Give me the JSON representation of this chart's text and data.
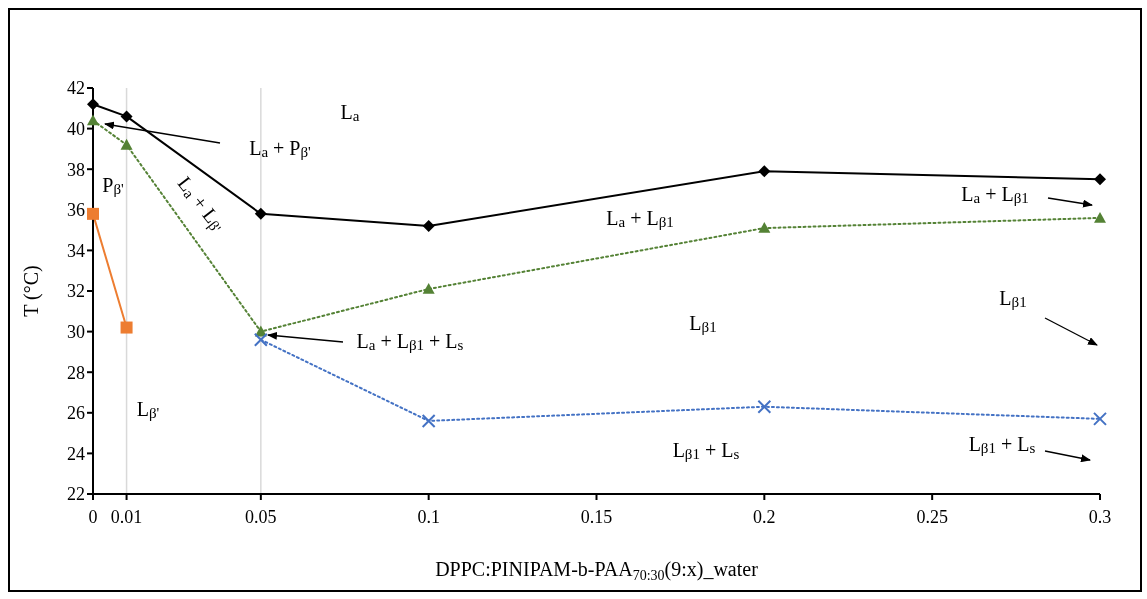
{
  "chart_data": {
    "type": "line",
    "xlabel": "DPPC:PINIPAM-b-PAA$_{70:30}$(9:x)_water",
    "ylabel": "T (°C)",
    "xlim": [
      0,
      0.3
    ],
    "xticks": [
      0,
      0.01,
      0.05,
      0.1,
      0.15,
      0.2,
      0.25,
      0.3
    ],
    "ylim": [
      22,
      42
    ],
    "yticks": [
      22,
      24,
      26,
      28,
      30,
      32,
      34,
      36,
      38,
      40,
      42
    ],
    "grid": false,
    "series": [
      {
        "color": "#000000",
        "marker": "diamond",
        "line_style": "solid",
        "x": [
          0,
          0.01,
          0.05,
          0.1,
          0.2,
          0.3
        ],
        "values": [
          41.2,
          40.6,
          35.8,
          35.2,
          37.9,
          37.5
        ]
      },
      {
        "color": "#548235",
        "marker": "triangle",
        "line_style": "dotted",
        "x": [
          0,
          0.01,
          0.05,
          0.1,
          0.2,
          0.3
        ],
        "values": [
          40.4,
          39.2,
          30.0,
          32.1,
          35.1,
          35.6
        ]
      },
      {
        "color": "#4472c4",
        "marker": "cross",
        "line_style": "dotted",
        "x": [
          0.05,
          0.1,
          0.2,
          0.3
        ],
        "values": [
          29.6,
          25.6,
          26.3,
          25.7
        ]
      },
      {
        "color": "#ed7d31",
        "marker": "square",
        "line_style": "solid",
        "x": [
          0,
          0.01
        ],
        "values": [
          35.8,
          30.2
        ]
      }
    ],
    "ref_lines": [
      {
        "axis": "x",
        "value": 0.01,
        "color": "#d9d9d9"
      },
      {
        "axis": "x",
        "value": 0.05,
        "color": "#d9d9d9"
      }
    ],
    "annotations": [
      "L$_{a}$",
      "L$_{a}$ + P$_{β'}$",
      "P$_{β'}$",
      "L$_{a}$ + L$_{β'}$",
      "L$_{a}$ + L$_{β1}$ + L$_{s}$",
      "L$_{β'}$",
      "L$_{a}$ + L$_{β1}$",
      "L$_{β1}$",
      "L$_{β1}$ + L$_{s}$",
      "L$_{a}$ + L$_{β1}$",
      "L$_{β1}$",
      "L$_{β1}$ + L$_{s}$"
    ]
  }
}
